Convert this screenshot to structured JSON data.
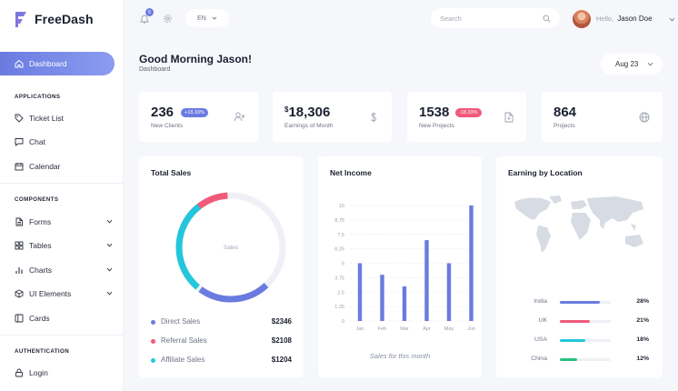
{
  "brand": {
    "name": "FreeDash",
    "accent": "#6a7be0"
  },
  "sidebar": {
    "active": {
      "label": "Dashboard",
      "icon": "home-icon"
    },
    "sections": [
      {
        "title": "APPLICATIONS",
        "items": [
          {
            "label": "Ticket List",
            "icon": "tag-icon",
            "has_submenu": false
          },
          {
            "label": "Chat",
            "icon": "chat-icon",
            "has_submenu": false
          },
          {
            "label": "Calendar",
            "icon": "calendar-icon",
            "has_submenu": false
          }
        ]
      },
      {
        "title": "COMPONENTS",
        "items": [
          {
            "label": "Forms",
            "icon": "file-icon",
            "has_submenu": true
          },
          {
            "label": "Tables",
            "icon": "grid-icon",
            "has_submenu": true
          },
          {
            "label": "Charts",
            "icon": "bar-chart-icon",
            "has_submenu": true
          },
          {
            "label": "UI Elements",
            "icon": "box-icon",
            "has_submenu": true
          },
          {
            "label": "Cards",
            "icon": "sidebar-icon",
            "has_submenu": false
          }
        ]
      },
      {
        "title": "AUTHENTICATION",
        "items": [
          {
            "label": "Login",
            "icon": "lock-icon",
            "has_submenu": false
          }
        ]
      }
    ]
  },
  "topbar": {
    "notification_count": "5",
    "language": "EN",
    "search_placeholder": "Search",
    "greeting": "Hello,",
    "user_name": "Jason Doe"
  },
  "page": {
    "title": "Good Morning Jason!",
    "breadcrumb": "Dashboard",
    "date_filter": "Aug 23"
  },
  "stats": [
    {
      "value": "236",
      "prefix": "",
      "label": "New Clients",
      "badge": "+18.33%",
      "badge_color": "#6a7be0",
      "icon": "user-plus-icon"
    },
    {
      "value": "18,306",
      "prefix": "$",
      "label": "Earnings of Month",
      "badge": "",
      "badge_color": "",
      "icon": "dollar-icon"
    },
    {
      "value": "1538",
      "prefix": "",
      "label": "New Projects",
      "badge": "-18.33%",
      "badge_color": "#f0597a",
      "icon": "file-plus-icon"
    },
    {
      "value": "864",
      "prefix": "",
      "label": "Projects",
      "badge": "",
      "badge_color": "",
      "icon": "globe-icon"
    }
  ],
  "total_sales": {
    "title": "Total Sales",
    "center_label": "Sales",
    "rows": [
      {
        "name": "Direct Sales",
        "amount": "$2346",
        "color": "#6a7be0"
      },
      {
        "name": "Referral Sales",
        "amount": "$2108",
        "color": "#f0597a"
      },
      {
        "name": "Affiliate Sales",
        "amount": "$1204",
        "color": "#22c7dc"
      }
    ]
  },
  "net_income": {
    "title": "Net Income",
    "caption": "Sales for this month"
  },
  "earning_by_location": {
    "title": "Earning by Location",
    "rows": [
      {
        "country": "India",
        "pct": "28%",
        "fill": 0.78,
        "color": "#6a7be0"
      },
      {
        "country": "UK",
        "pct": "21%",
        "fill": 0.59,
        "color": "#f0597a"
      },
      {
        "country": "USA",
        "pct": "18%",
        "fill": 0.5,
        "color": "#22c7dc"
      },
      {
        "country": "China",
        "pct": "12%",
        "fill": 0.34,
        "color": "#26c281"
      }
    ]
  },
  "chart_data": [
    {
      "type": "pie",
      "title": "Total Sales",
      "donut": true,
      "categories": [
        "Direct Sales",
        "Referral Sales",
        "Affiliate Sales"
      ],
      "values": [
        2346,
        2108,
        1204
      ],
      "colors": [
        "#6a7be0",
        "#f0597a",
        "#22c7dc"
      ]
    },
    {
      "type": "bar",
      "title": "Net Income",
      "categories": [
        "Jan",
        "Feb",
        "Mar",
        "Apr",
        "May",
        "Jun"
      ],
      "values": [
        5,
        4,
        3,
        7,
        5,
        10
      ],
      "ylim": [
        0,
        10
      ],
      "yticks": [
        "0",
        "1.25",
        "2.5",
        "3.75",
        "5",
        "6.25",
        "7.5",
        "8.75",
        "10"
      ],
      "color": "#6a7be0",
      "grid": true
    }
  ]
}
